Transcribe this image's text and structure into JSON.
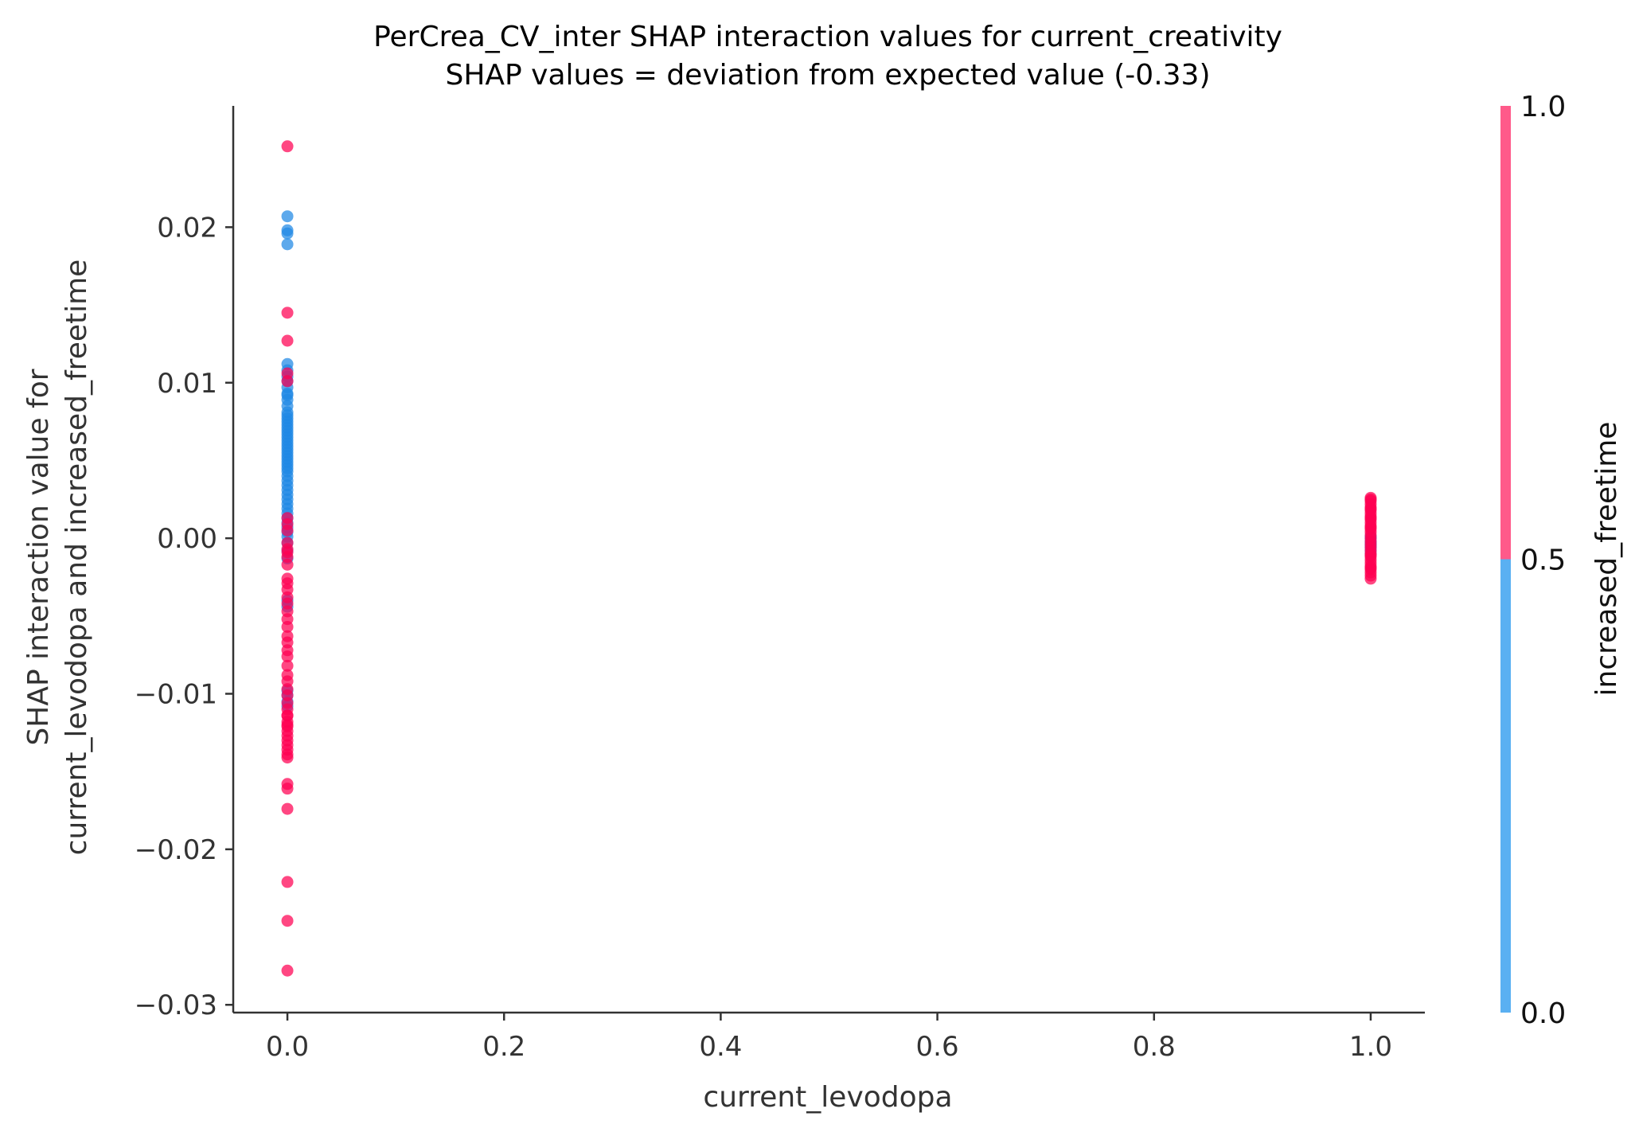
{
  "chart_data": {
    "type": "scatter",
    "title_line1": "PerCrea_CV_inter SHAP interaction values for current_creativity",
    "title_line2": "SHAP values = deviation from expected value (-0.33)",
    "xlabel": "current_levodopa",
    "ylabel_line1": "SHAP interaction value for",
    "ylabel_line2": "current_levodopa and increased_freetime",
    "xlim": [
      -0.05,
      1.05
    ],
    "ylim": [
      -0.0305,
      0.0278
    ],
    "x_ticks": [
      "0.0",
      "0.2",
      "0.4",
      "0.6",
      "0.8",
      "1.0"
    ],
    "x_tick_values": [
      0.0,
      0.2,
      0.4,
      0.6,
      0.8,
      1.0
    ],
    "y_ticks": [
      "−0.03",
      "−0.02",
      "−0.01",
      "0.00",
      "0.01",
      "0.02"
    ],
    "y_tick_values": [
      -0.03,
      -0.02,
      -0.01,
      0.0,
      0.01,
      0.02
    ],
    "grid": false,
    "colorbar": {
      "label": "increased_freetime",
      "ticks": [
        "0.0",
        "0.5",
        "1.0"
      ],
      "tick_values": [
        0.0,
        0.5,
        1.0
      ],
      "low_color": "#5ab0f2",
      "high_color": "#ff5a8a"
    },
    "series": [
      {
        "name": "increased_freetime = 0",
        "color": "#1e88e5",
        "x": [
          0,
          0,
          0,
          0,
          0,
          0,
          0,
          0,
          0,
          0,
          0,
          0,
          0,
          0,
          0,
          0,
          0,
          0,
          0,
          0,
          0,
          0,
          0,
          0,
          0,
          0,
          0,
          0,
          0,
          0,
          0,
          0,
          0,
          0,
          0,
          0,
          0,
          0,
          0,
          0,
          0,
          0,
          0,
          0,
          0,
          0,
          0,
          0,
          0,
          0,
          0,
          0,
          0,
          0,
          0,
          0,
          1,
          1,
          1,
          1,
          1,
          1,
          1,
          1,
          1
        ],
        "y": [
          0.0207,
          0.0198,
          0.0196,
          0.0189,
          0.0112,
          0.0108,
          0.0104,
          0.0101,
          0.0097,
          0.0093,
          0.0092,
          0.0089,
          0.0085,
          0.0081,
          0.0079,
          0.0077,
          0.0075,
          0.0073,
          0.0071,
          0.0069,
          0.0067,
          0.0065,
          0.0063,
          0.0061,
          0.0059,
          0.0057,
          0.0055,
          0.0053,
          0.0051,
          0.0049,
          0.0047,
          0.0045,
          0.0043,
          0.004,
          0.0037,
          0.0034,
          0.0031,
          0.0028,
          0.0025,
          0.0022,
          0.0019,
          0.0016,
          0.0013,
          0.001,
          0.0007,
          0.0004,
          0.0001,
          -0.0003,
          -0.0008,
          -0.0013,
          -0.004,
          -0.0044,
          -0.0098,
          -0.0101,
          -0.0105,
          -0.0108,
          -0.0002,
          -0.0004,
          -0.0006,
          -0.0008,
          -0.001,
          0.0,
          -0.0003,
          -0.0005,
          0.0001
        ]
      },
      {
        "name": "increased_freetime = 1",
        "color": "#ff0052",
        "x": [
          0,
          0,
          0,
          0,
          0,
          0,
          0,
          0,
          0,
          0,
          0,
          0,
          0,
          0,
          0,
          0,
          0,
          0,
          0,
          0,
          0,
          0,
          0,
          0,
          0,
          0,
          0,
          0,
          0,
          0,
          0,
          0,
          0,
          0,
          0,
          0,
          0,
          0,
          0,
          0,
          0,
          0,
          0,
          0,
          0,
          0,
          0,
          0,
          0,
          0,
          1,
          1,
          1,
          1,
          1,
          1,
          1,
          1,
          1,
          1,
          1,
          1,
          1,
          1,
          1,
          1,
          1,
          1,
          1,
          1,
          1,
          1,
          1,
          1,
          1,
          1,
          1,
          1,
          1,
          1,
          1,
          1,
          1
        ],
        "y": [
          0.0252,
          0.0145,
          0.0127,
          0.0106,
          0.0101,
          0.0013,
          0.0009,
          0.0005,
          -0.0007,
          -0.0012,
          -0.0017,
          -0.0026,
          -0.0029,
          -0.0033,
          -0.0038,
          -0.0042,
          -0.0047,
          -0.0052,
          -0.0057,
          -0.0063,
          -0.0067,
          -0.0072,
          -0.0076,
          -0.0082,
          -0.0088,
          -0.0092,
          -0.0097,
          -0.0101,
          -0.0106,
          -0.011,
          -0.0114,
          -0.0118,
          -0.0121,
          -0.0124,
          -0.0127,
          -0.013,
          -0.0133,
          -0.0136,
          -0.0139,
          -0.0141,
          -0.0158,
          -0.0161,
          -0.0174,
          -0.0221,
          -0.0246,
          -0.0278,
          -0.0114,
          -0.012,
          -0.0009,
          -0.0003,
          0.0026,
          0.0024,
          0.0022,
          0.002,
          0.0018,
          0.0016,
          0.0014,
          0.0012,
          0.001,
          0.0008,
          0.0006,
          0.0004,
          0.0002,
          0.0,
          -0.0002,
          -0.0004,
          -0.0006,
          -0.0008,
          -0.001,
          -0.0012,
          -0.0014,
          -0.0016,
          -0.0018,
          -0.002,
          -0.0022,
          -0.0024,
          -0.0026,
          0.0025,
          0.0019,
          0.0013,
          0.0007,
          -0.0011,
          -0.0019
        ]
      }
    ]
  }
}
